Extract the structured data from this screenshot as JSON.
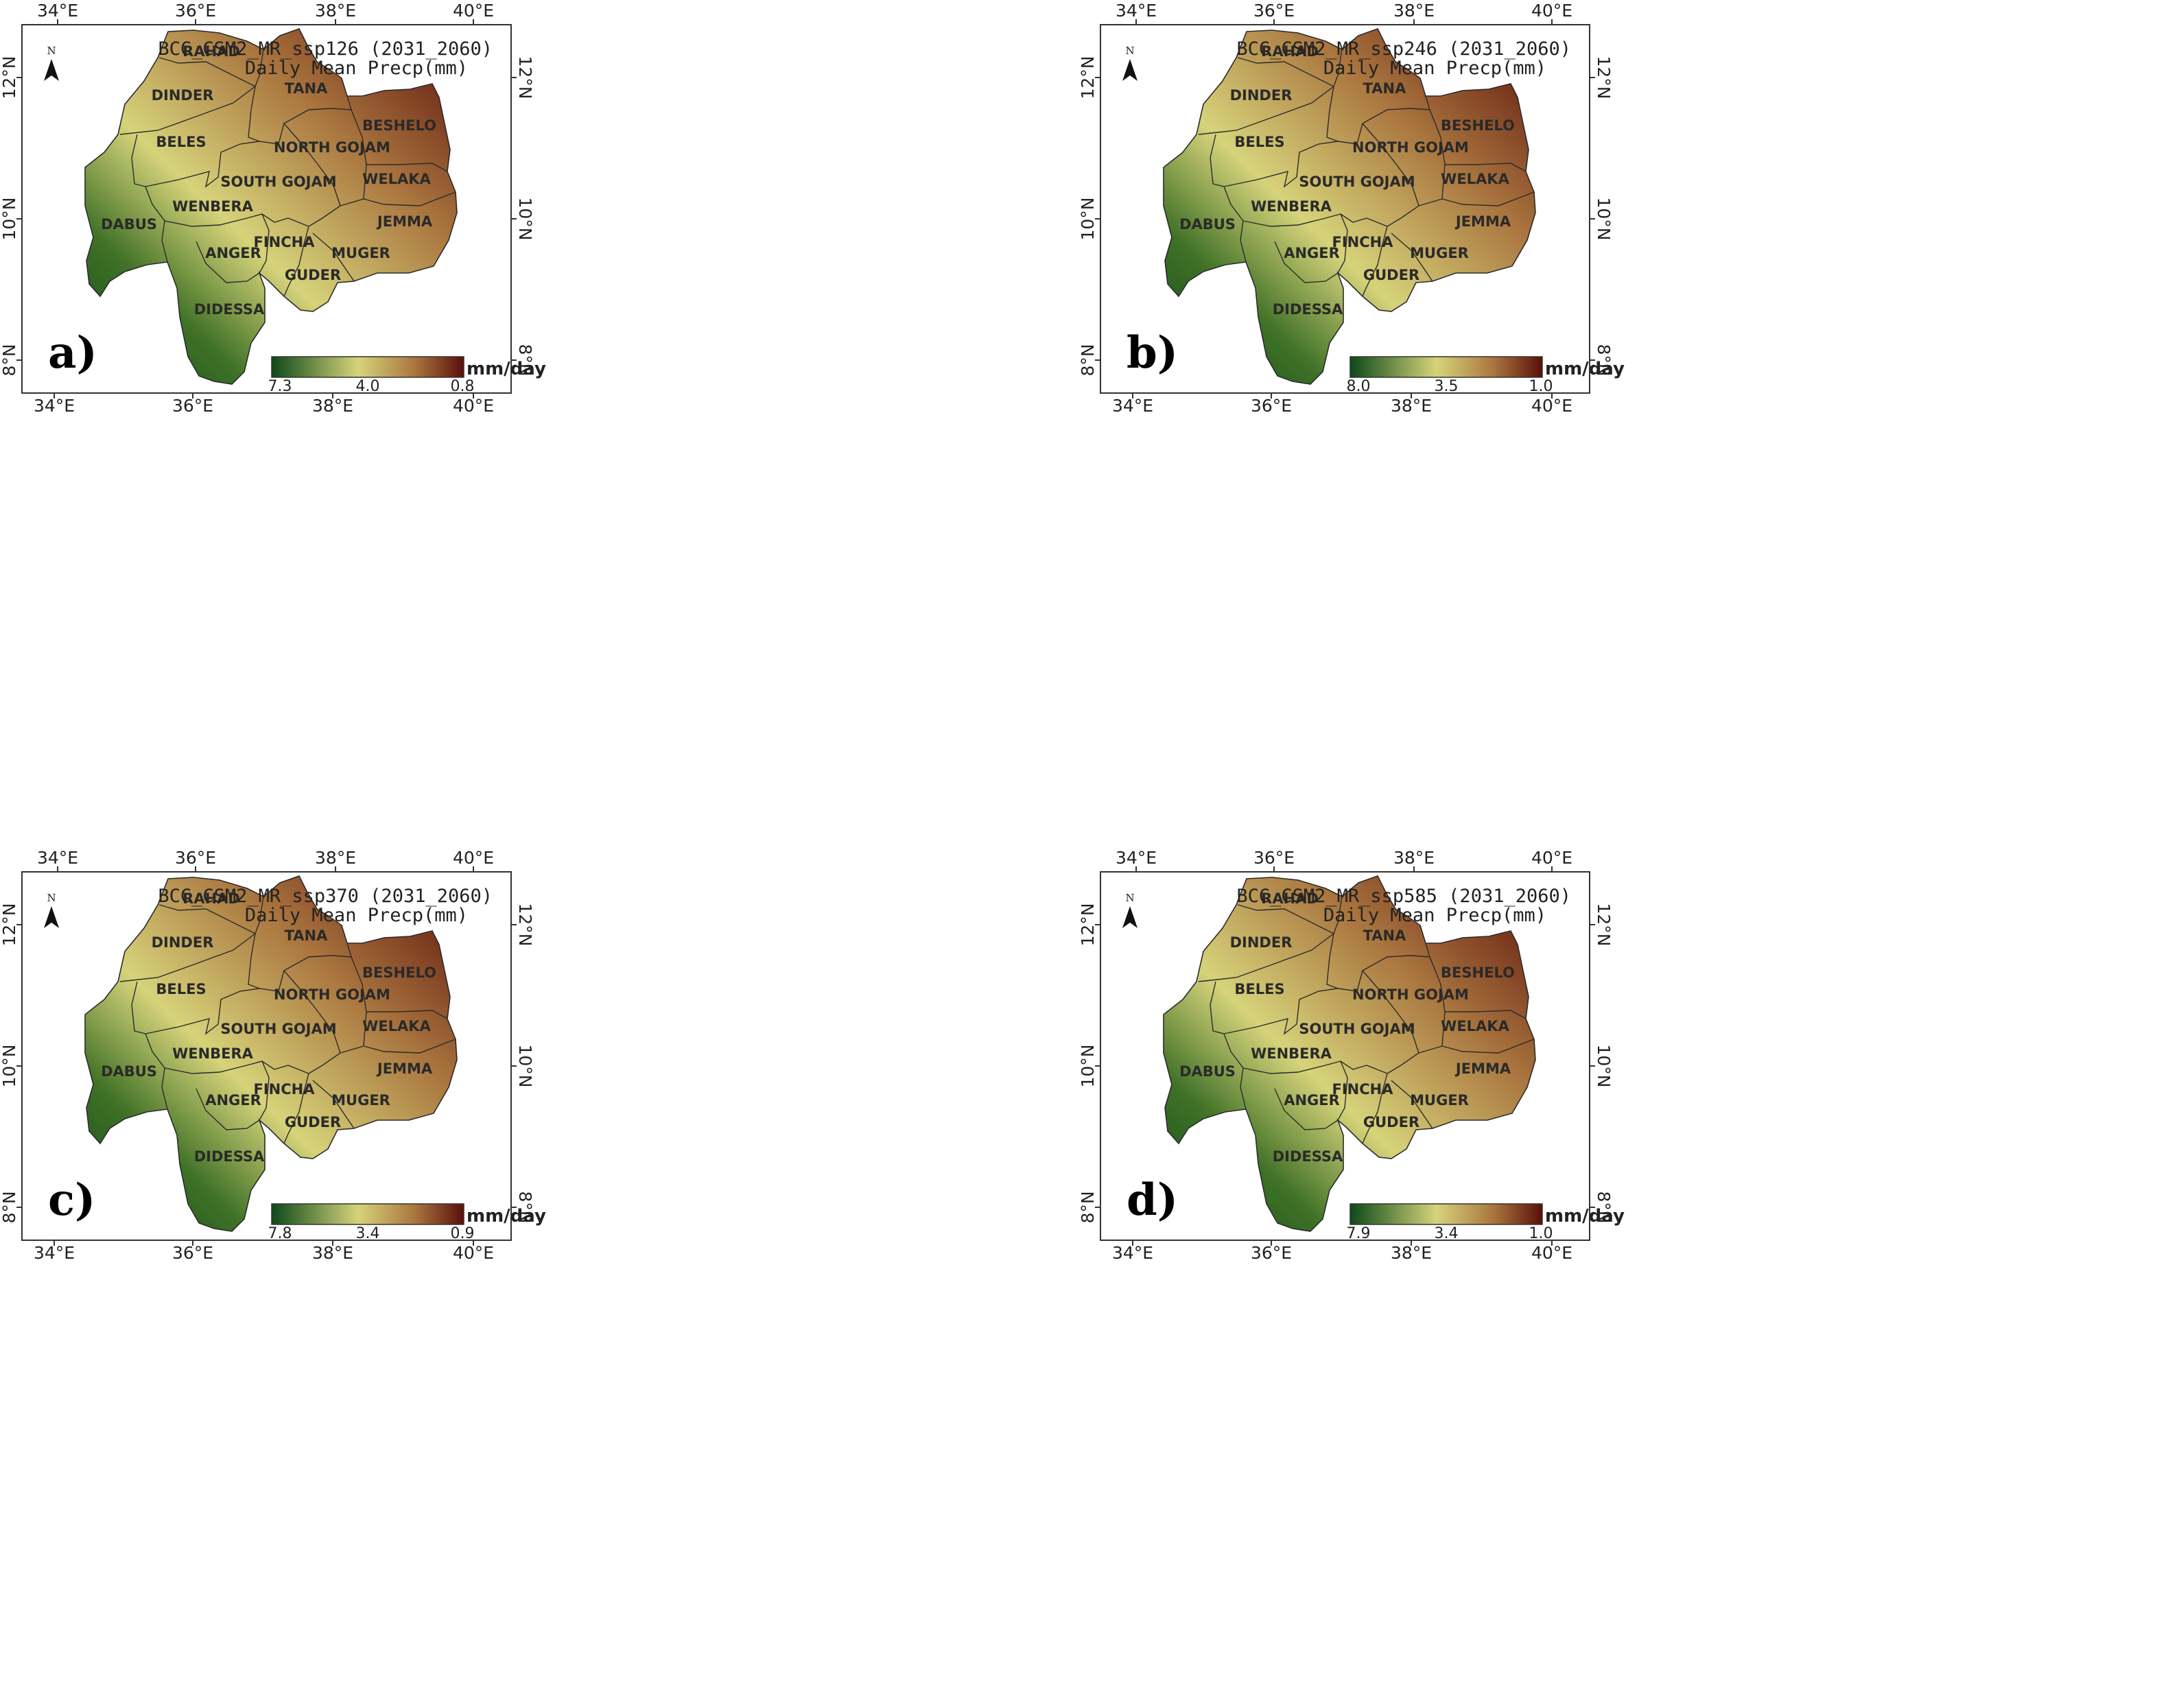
{
  "panels": [
    {
      "label": "a)",
      "title": "BCC_CSM2_MR_ssp126 (2031_2060)",
      "subtitle": "Daily Mean Precp(mm)",
      "legend": {
        "unit": "mm/day",
        "values": [
          "7.3",
          "4.0",
          "0.8"
        ]
      }
    },
    {
      "label": "b)",
      "title": "BCC_CSM2_MR_ssp246 (2031_2060)",
      "subtitle": "Daily Mean Precp(mm)",
      "legend": {
        "unit": "mm/day",
        "values": [
          "8.0",
          "3.5",
          "1.0"
        ]
      }
    },
    {
      "label": "c)",
      "title": "BCC_CSM2_MR_ssp370 (2031_2060)",
      "subtitle": "Daily Mean Precp(mm)",
      "legend": {
        "unit": "mm/day",
        "values": [
          "7.8",
          "3.4",
          "0.9"
        ]
      }
    },
    {
      "label": "d)",
      "title": "BCC_CSM2_MR_ssp585 (2031_2060)",
      "subtitle": "Daily Mean Precp(mm)",
      "legend": {
        "unit": "mm/day",
        "values": [
          "7.9",
          "3.4",
          "1.0"
        ]
      }
    }
  ],
  "lon_ticks": [
    "34°E",
    "36°E",
    "38°E",
    "40°E"
  ],
  "lat_ticks": [
    "12°N",
    "10°N",
    "8°N"
  ],
  "north_arrow": "N",
  "basins": [
    "RAHAD",
    "DINDER",
    "TANA",
    "BESHELO",
    "BELES",
    "NORTH GOJAM",
    "SOUTH GOJAM",
    "WELAKA",
    "WENBERA",
    "DABUS",
    "JEMMA",
    "FINCHA",
    "ANGER",
    "MUGER",
    "GUDER",
    "DIDESSA"
  ],
  "colors": {
    "wet": "#0d4a1a",
    "mid_green": "#5e8a2e",
    "mid": "#d6d37a",
    "tan": "#b8894a",
    "dry": "#5a0f0a"
  }
}
